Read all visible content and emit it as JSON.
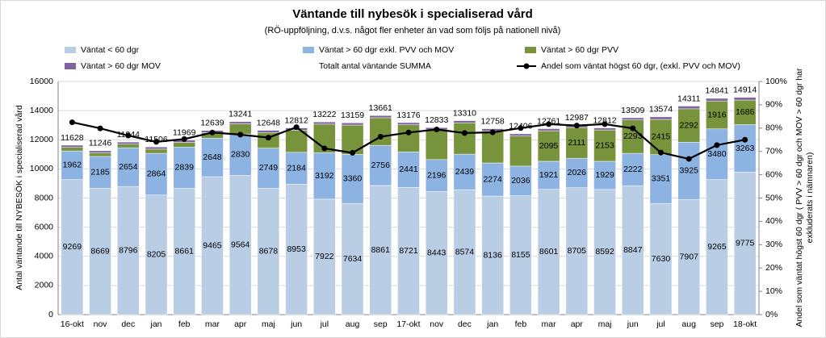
{
  "chart_data": {
    "type": "bar",
    "stacked": true,
    "title": "Väntande till nybesök i specialiserad vård",
    "subtitle": "(RÖ-uppföljning, d.v.s. något fler enheter än vad som följs på nationell nivå)",
    "y_label": "Antal väntande till NYBESÖK i specialiserad vård",
    "y2_label": [
      "Andel som väntat högst 60 dgr ( PVV > 60 dgr och MOV > 60 dgr har",
      "exkluderats i nämnaren)"
    ],
    "categories": [
      "16-okt",
      "nov",
      "dec",
      "jan",
      "feb",
      "mar",
      "apr",
      "maj",
      "jun",
      "jul",
      "aug",
      "sep",
      "17-okt",
      "nov",
      "dec",
      "jan",
      "feb",
      "mar",
      "apr",
      "maj",
      "jun",
      "jul",
      "aug",
      "sep",
      "18-okt"
    ],
    "ylim": [
      0,
      16000
    ],
    "yticks": [
      0,
      2000,
      4000,
      6000,
      8000,
      10000,
      12000,
      14000,
      16000
    ],
    "y2lim": [
      0,
      100
    ],
    "y2ticks": [
      {
        "value": 0,
        "label": "0%"
      },
      {
        "value": 10,
        "label": "10%"
      },
      {
        "value": 20,
        "label": "20%"
      },
      {
        "value": 30,
        "label": "30%"
      },
      {
        "value": 40,
        "label": "40%"
      },
      {
        "value": 50,
        "label": "50%"
      },
      {
        "value": 60,
        "label": "60%"
      },
      {
        "value": 70,
        "label": "70%"
      },
      {
        "value": 80,
        "label": "80%"
      },
      {
        "value": 90,
        "label": "90%"
      },
      {
        "value": 100,
        "label": "100%"
      }
    ],
    "series": [
      {
        "name": "Väntat < 60 dgr",
        "color": "#b9cde5",
        "values": [
          9269,
          8669,
          8796,
          8205,
          8661,
          9465,
          9564,
          8678,
          8953,
          7922,
          7634,
          8861,
          8721,
          8443,
          8574,
          8136,
          8155,
          8601,
          8705,
          8592,
          8847,
          7630,
          7907,
          9265,
          9775
        ]
      },
      {
        "name": "Väntat > 60 dgr exkl. PVV och MOV",
        "color": "#8db3e2",
        "values": [
          1962,
          2185,
          2654,
          2864,
          2839,
          2648,
          2830,
          2749,
          2184,
          3192,
          3360,
          2756,
          2441,
          2196,
          2439,
          2274,
          2036,
          1921,
          2026,
          1929,
          2222,
          3351,
          3925,
          3480,
          3263
        ]
      },
      {
        "name": "Väntat > 60 dgr PVV",
        "color": "#77933c",
        "values": [
          247,
          242,
          244,
          287,
          319,
          376,
          697,
          1071,
          1525,
          1958,
          2015,
          1894,
          1864,
          2044,
          2147,
          2198,
          2065,
          2095,
          2111,
          2153,
          2293,
          2415,
          2292,
          1916,
          1686
        ],
        "value_labels": [
          null,
          null,
          null,
          null,
          null,
          null,
          null,
          null,
          null,
          null,
          null,
          null,
          null,
          null,
          null,
          null,
          null,
          "2095",
          "2111",
          "2153",
          "2293",
          "2415",
          "2292",
          "1916",
          "1686"
        ]
      },
      {
        "name": "Väntat > 60 dgr MOV",
        "color": "#8064a2",
        "values": [
          150,
          150,
          150,
          150,
          150,
          150,
          150,
          150,
          150,
          150,
          150,
          150,
          150,
          150,
          150,
          150,
          150,
          144,
          145,
          138,
          147,
          178,
          187,
          180,
          190
        ]
      },
      {
        "name": "Totalt antal väntande SUMMA",
        "values": [
          11628,
          11246,
          11844,
          11506,
          11969,
          12639,
          13241,
          12648,
          12812,
          13222,
          13159,
          13661,
          13176,
          12833,
          13310,
          12758,
          12406,
          12761,
          12987,
          12812,
          13509,
          13574,
          14311,
          14841,
          14914
        ]
      },
      {
        "name": "Andel som väntat högst 60 dgr, (exkl. PVV och MOV)",
        "color": "#000000",
        "type": "line",
        "axis": "y2",
        "values": [
          82.5,
          79.9,
          76.8,
          74.1,
          75.3,
          78.1,
          77.2,
          75.9,
          80.4,
          71.3,
          69.4,
          76.3,
          78.1,
          79.4,
          77.9,
          78.2,
          80.0,
          81.7,
          81.1,
          81.7,
          79.9,
          69.5,
          66.8,
          72.7,
          75.0
        ]
      }
    ]
  }
}
